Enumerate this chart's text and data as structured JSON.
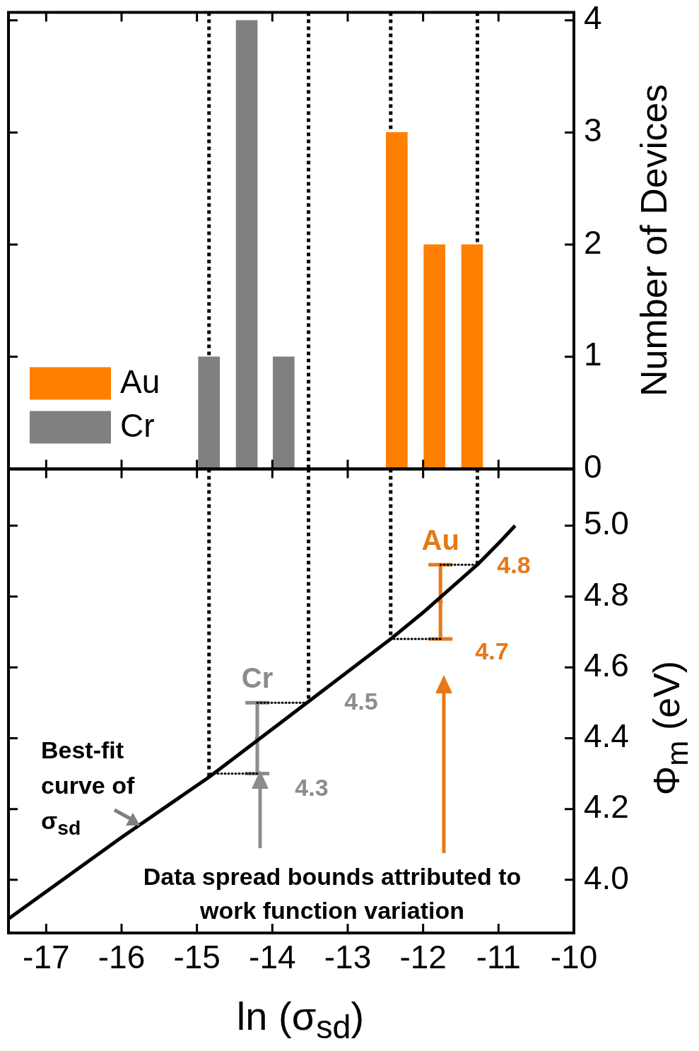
{
  "chart_data": [
    {
      "type": "bar",
      "ylabel": "Number of Devices",
      "xlim": [
        -17.5,
        -10
      ],
      "xticks": [
        -17,
        -16,
        -15,
        -14,
        -13,
        -12,
        -11,
        -10
      ],
      "ylim": [
        0,
        4.07
      ],
      "yticks": [
        0,
        1,
        2,
        3,
        4
      ],
      "tick_labels": "y",
      "legend": "bottom left",
      "series": [
        {
          "name": "Au",
          "color": "#ff8000",
          "x": [
            -12.35,
            -11.85,
            -11.35
          ],
          "values": [
            3,
            2,
            2
          ]
        },
        {
          "name": "Cr",
          "color": "#808080",
          "x": [
            -14.84,
            -14.34,
            -13.85
          ],
          "values": [
            1,
            4,
            1
          ]
        }
      ],
      "ref_lines": [
        {
          "axis": "x",
          "value": -14.84,
          "line_style": "dotted",
          "color": "#000000"
        },
        {
          "axis": "x",
          "value": -13.52,
          "line_style": "dotted",
          "color": "#000000"
        },
        {
          "axis": "x",
          "value": -12.43,
          "line_style": "dotted",
          "color": "#000000"
        },
        {
          "axis": "x",
          "value": -11.28,
          "line_style": "dotted",
          "color": "#000000"
        }
      ]
    },
    {
      "type": "line",
      "xlabel": "ln (σ$_{sd}$)",
      "ylabel": "Φ$_{m}$ (eV)",
      "xlim": [
        -17.5,
        -10
      ],
      "xticks": [
        -17,
        -16,
        -15,
        -14,
        -13,
        -12,
        -11,
        -10
      ],
      "ylim": [
        3.85,
        5.16
      ],
      "yticks": [
        {
          "value": 4,
          "label": "4.0"
        },
        4.2,
        4.4,
        4.6,
        4.8,
        {
          "value": 5,
          "label": "5.0"
        }
      ],
      "marker": "none",
      "series": [
        {
          "color": "#000000",
          "x": [
            -17.5,
            -16,
            -14.84,
            -13.51,
            -12.43,
            -12,
            -11.28,
            -11,
            -10.78
          ],
          "values": [
            3.89,
            4.12,
            4.29,
            4.505,
            4.68,
            4.755,
            4.89,
            4.95,
            5.0
          ]
        },
        {
          "color": "#000000",
          "line_style": "dotted",
          "x": [
            -14.84,
            -14.84
          ],
          "values": [
            5.16,
            4.29
          ]
        },
        {
          "color": "#000000",
          "line_style": "dotted",
          "x": [
            -13.52,
            -13.52
          ],
          "values": [
            5.16,
            4.505
          ]
        },
        {
          "color": "#000000",
          "line_style": "dotted",
          "x": [
            -12.43,
            -12.43
          ],
          "values": [
            5.16,
            4.68
          ]
        },
        {
          "color": "#000000",
          "line_style": "dotted",
          "x": [
            -11.28,
            -11.28
          ],
          "values": [
            5.16,
            4.89
          ]
        },
        {
          "color": "#000000",
          "line_style": "dotted",
          "x": [
            -14.2,
            -14.84
          ],
          "values": [
            4.3,
            4.3
          ]
        },
        {
          "color": "#000000",
          "line_style": "dotted",
          "x": [
            -14.2,
            -13.52
          ],
          "values": [
            4.5,
            4.5
          ]
        },
        {
          "color": "#000000",
          "line_style": "dotted",
          "x": [
            -11.77,
            -12.43
          ],
          "values": [
            4.68,
            4.68
          ]
        },
        {
          "color": "#000000",
          "line_style": "dotted",
          "x": [
            -11.77,
            -11.28
          ],
          "values": [
            4.89,
            4.89
          ]
        },
        {
          "type": "scatter",
          "name": "Cr",
          "color": "#8c8c8c",
          "marker": "circle",
          "x": [
            -14.2
          ],
          "values": [
            4.4
          ],
          "errors": [
            0.1
          ]
        },
        {
          "type": "scatter",
          "name": "Au",
          "color": "#e67817",
          "marker": "circle",
          "x": [
            -11.77
          ],
          "values": [
            4.785
          ],
          "errors": [
            0.105
          ]
        }
      ],
      "annotations": [
        "4.3",
        "4.5",
        "4.7",
        "4.8",
        "Best-fit\ncurve of\nσ$_{sd}$",
        "Data spread bounds attributed to\nwork function variation"
      ]
    }
  ]
}
